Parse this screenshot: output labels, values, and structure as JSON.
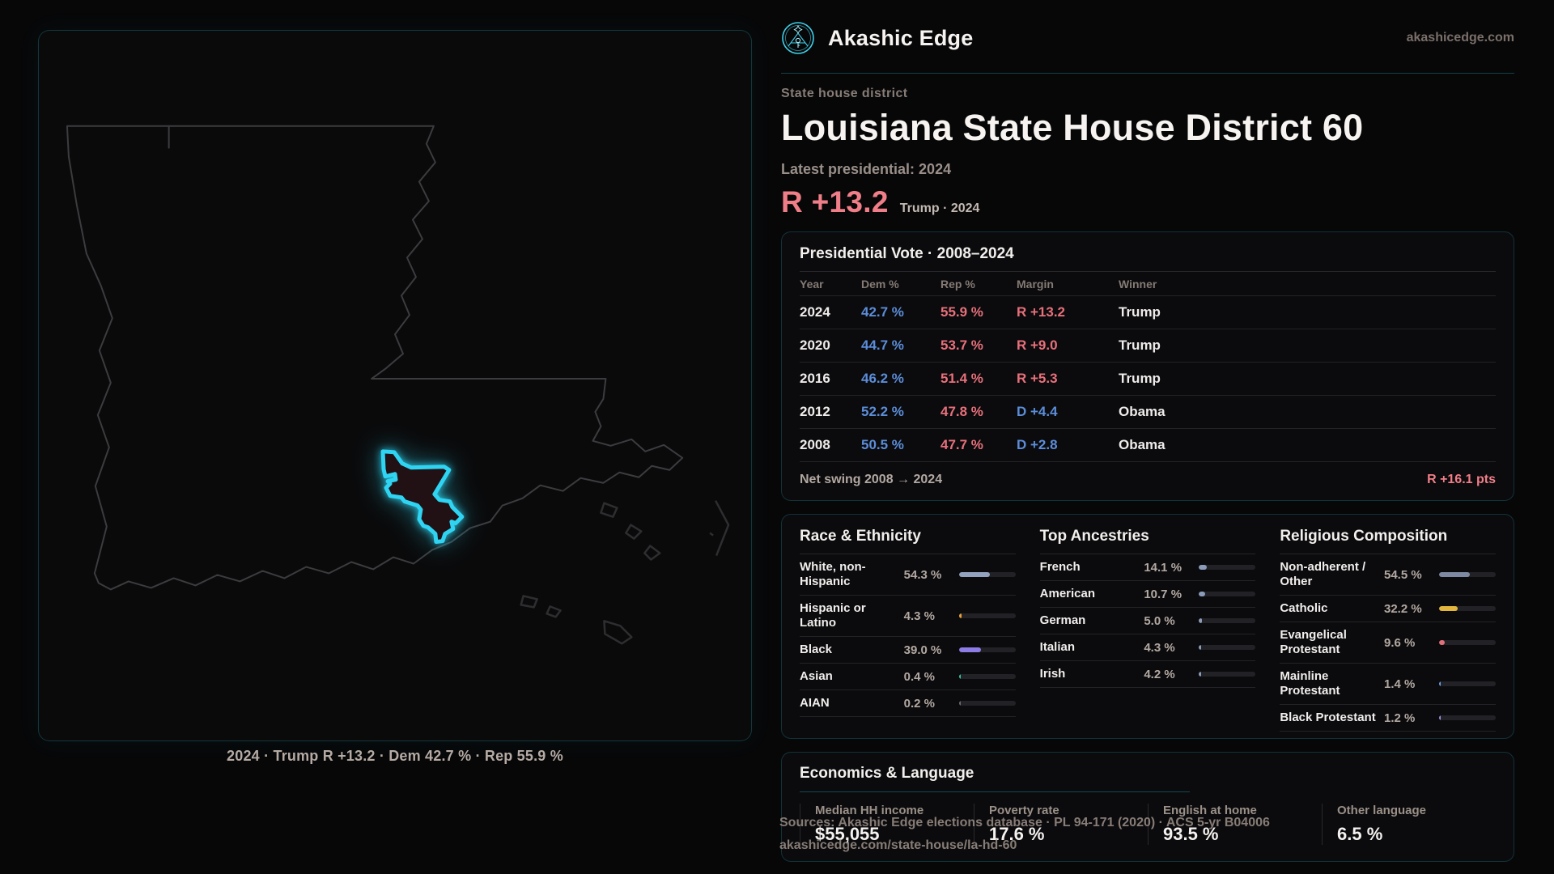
{
  "colors": {
    "accent_teal": "#2fd4f2",
    "rep_red": "#e8707b",
    "dem_blue": "#5b8dd9",
    "headline_red": "#f07e88"
  },
  "header": {
    "brand": "Akashic Edge",
    "domain": "akashicedge.com"
  },
  "hero": {
    "kicker": "State house district",
    "title": "Louisiana State House District 60",
    "latest_label": "Latest presidential: 2024",
    "margin_value": "R +13.2",
    "margin_context": "Trump · 2024"
  },
  "map": {
    "caption": "2024 · Trump R +13.2 · Dem 42.7 % · Rep 55.9 %"
  },
  "presidential": {
    "title": "Presidential Vote · 2008–2024",
    "columns": [
      "Year",
      "Dem %",
      "Rep %",
      "Margin",
      "Winner"
    ],
    "rows": [
      {
        "year": "2024",
        "dem": "42.7 %",
        "rep": "55.9 %",
        "margin": "R +13.2",
        "margin_color": "#e8707b",
        "winner": "Trump"
      },
      {
        "year": "2020",
        "dem": "44.7 %",
        "rep": "53.7 %",
        "margin": "R +9.0",
        "margin_color": "#e8707b",
        "winner": "Trump"
      },
      {
        "year": "2016",
        "dem": "46.2 %",
        "rep": "51.4 %",
        "margin": "R +5.3",
        "margin_color": "#e8707b",
        "winner": "Trump"
      },
      {
        "year": "2012",
        "dem": "52.2 %",
        "rep": "47.8 %",
        "margin": "D +4.4",
        "margin_color": "#5b8dd9",
        "winner": "Obama"
      },
      {
        "year": "2008",
        "dem": "50.5 %",
        "rep": "47.7 %",
        "margin": "D +2.8",
        "margin_color": "#5b8dd9",
        "winner": "Obama"
      }
    ],
    "net_swing_label": "Net swing 2008 → 2024",
    "net_swing_value": "R +16.1 pts"
  },
  "race": {
    "title": "Race & Ethnicity",
    "rows": [
      {
        "label": "White, non-Hispanic",
        "value": "54.3 %",
        "pct": 54.3,
        "color": "#92a3c0"
      },
      {
        "label": "Hispanic or Latino",
        "value": "4.3 %",
        "pct": 4.3,
        "color": "#e7a03c"
      },
      {
        "label": "Black",
        "value": "39.0 %",
        "pct": 39.0,
        "color": "#8d7ce6"
      },
      {
        "label": "Asian",
        "value": "0.4 %",
        "pct": 0.4,
        "color": "#36c59f"
      },
      {
        "label": "AIAN",
        "value": "0.2 %",
        "pct": 0.2,
        "color": "#6a6a72"
      }
    ]
  },
  "ancestries": {
    "title": "Top Ancestries",
    "rows": [
      {
        "label": "French",
        "value": "14.1 %",
        "pct": 14.1,
        "color": "#8b9cb8"
      },
      {
        "label": "American",
        "value": "10.7 %",
        "pct": 10.7,
        "color": "#8b9cb8"
      },
      {
        "label": "German",
        "value": "5.0 %",
        "pct": 5.0,
        "color": "#8b9cb8"
      },
      {
        "label": "Italian",
        "value": "4.3 %",
        "pct": 4.3,
        "color": "#8b9cb8"
      },
      {
        "label": "Irish",
        "value": "4.2 %",
        "pct": 4.2,
        "color": "#8b9cb8"
      }
    ]
  },
  "religion": {
    "title": "Religious Composition",
    "rows": [
      {
        "label": "Non-adherent / Other",
        "value": "54.5 %",
        "pct": 54.5,
        "color": "#7e8aa4"
      },
      {
        "label": "Catholic",
        "value": "32.2 %",
        "pct": 32.2,
        "color": "#e2b63e"
      },
      {
        "label": "Evangelical Protestant",
        "value": "9.6 %",
        "pct": 9.6,
        "color": "#e0717a"
      },
      {
        "label": "Mainline Protestant",
        "value": "1.4 %",
        "pct": 1.4,
        "color": "#6b9fd8"
      },
      {
        "label": "Black Protestant",
        "value": "1.2 %",
        "pct": 1.2,
        "color": "#9d8ce0"
      }
    ]
  },
  "economics": {
    "title": "Economics & Language",
    "stats": [
      {
        "label": "Median HH income",
        "value": "$55,055"
      },
      {
        "label": "Poverty rate",
        "value": "17.6 %"
      },
      {
        "label": "English at home",
        "value": "93.5 %"
      },
      {
        "label": "Other language",
        "value": "6.5 %"
      }
    ]
  },
  "footer": {
    "line1": "Sources: Akashic Edge elections database · PL 94-171 (2020) · ACS 5-yr B04006",
    "line2": "akashicedge.com/state-house/la-hd-60"
  }
}
